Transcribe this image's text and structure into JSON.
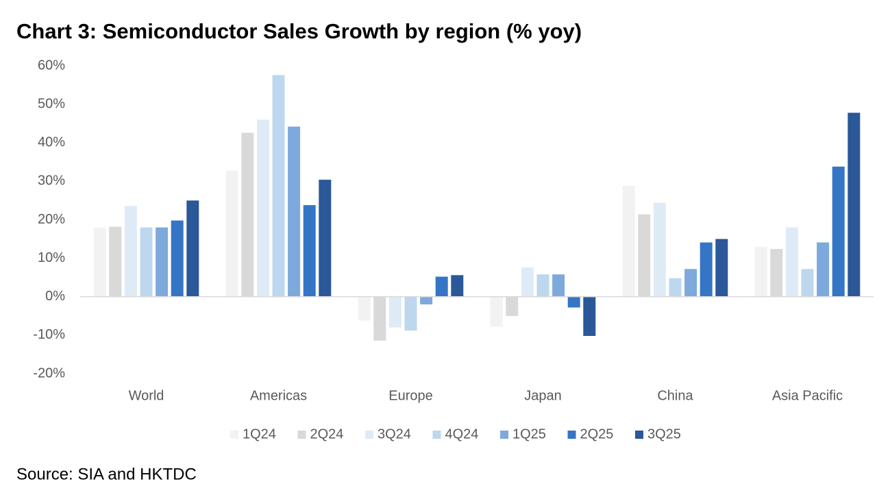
{
  "chart_data": {
    "type": "bar",
    "title": "Chart 3: Semiconductor Sales Growth by region (% yoy)",
    "source": "Source: SIA and HKTDC",
    "categories": [
      "World",
      "Americas",
      "Europe",
      "Japan",
      "China",
      "Asia Pacific"
    ],
    "series": [
      {
        "name": "1Q24",
        "color": "#f2f2f2",
        "values": [
          18,
          32.8,
          -6.2,
          -7.8,
          28.8,
          13
        ]
      },
      {
        "name": "2Q24",
        "color": "#d9d9d9",
        "values": [
          18.2,
          42.6,
          -11.4,
          -5,
          21.4,
          12.4
        ]
      },
      {
        "name": "3Q24",
        "color": "#deebf7",
        "values": [
          23.6,
          46,
          -8,
          7.6,
          24.4,
          18
        ]
      },
      {
        "name": "4Q24",
        "color": "#bdd7ee",
        "values": [
          18,
          57.6,
          -8.8,
          5.8,
          4.8,
          7.2
        ]
      },
      {
        "name": "1Q25",
        "color": "#7ea9dc",
        "values": [
          18,
          44.2,
          -2,
          5.8,
          7.2,
          14.1
        ]
      },
      {
        "name": "2Q25",
        "color": "#3575c6",
        "values": [
          19.8,
          23.8,
          5.2,
          -2.8,
          14.1,
          33.8
        ]
      },
      {
        "name": "3Q25",
        "color": "#2a5899",
        "values": [
          25,
          30.4,
          5.6,
          -10.2,
          15,
          47.8
        ]
      }
    ],
    "ylim": [
      -20,
      60
    ],
    "yticks": [
      {
        "value": -20,
        "label": "-20%"
      },
      {
        "value": -10,
        "label": "-10%"
      },
      {
        "value": 0,
        "label": "0%"
      },
      {
        "value": 10,
        "label": "10%"
      },
      {
        "value": 20,
        "label": "20%"
      },
      {
        "value": 30,
        "label": "30%"
      },
      {
        "value": 40,
        "label": "40%"
      },
      {
        "value": 50,
        "label": "50%"
      },
      {
        "value": 60,
        "label": "60%"
      }
    ],
    "grid": false,
    "legend": "bottom"
  }
}
